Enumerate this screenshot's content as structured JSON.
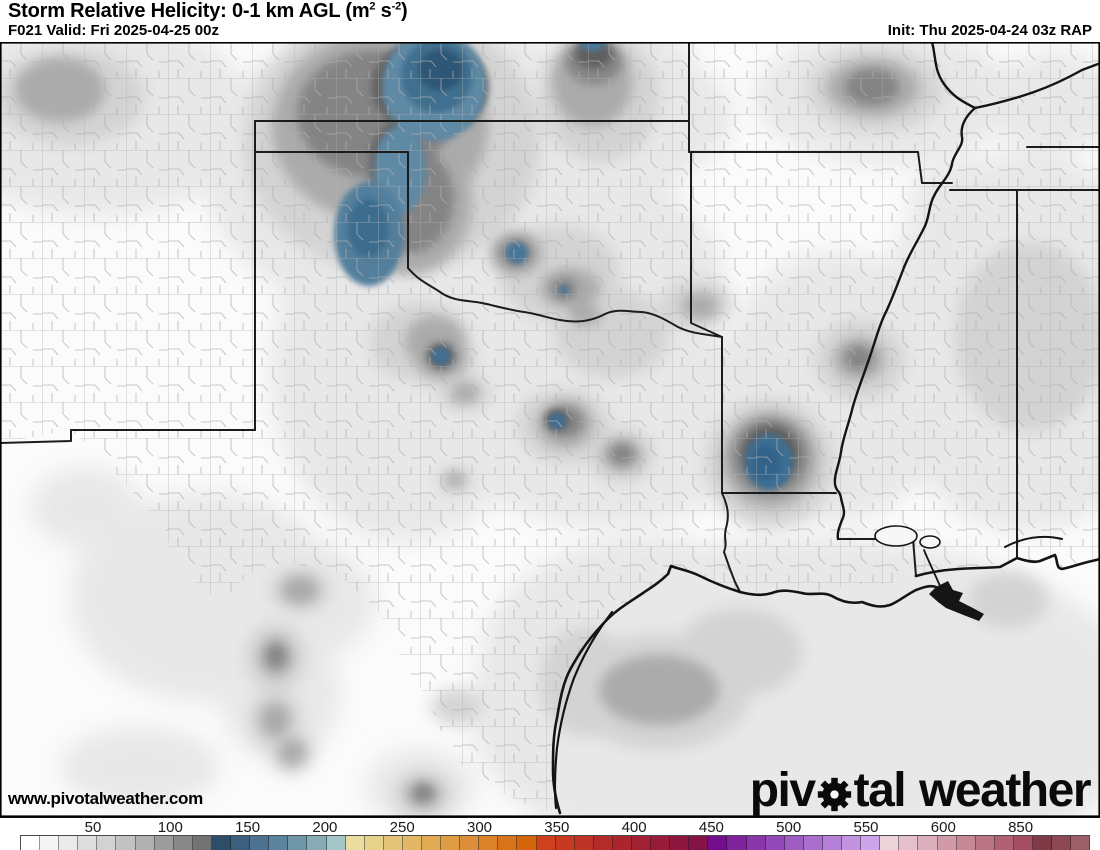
{
  "header": {
    "title_prefix": "Storm Relative Helicity: 0-1 km AGL (m",
    "title_sup1": "2",
    "title_mid": " s",
    "title_sup2": "-2",
    "title_suffix": ")",
    "valid": "F021 Valid: Fri 2025-04-25 00z",
    "init": "Init: Thu 2025-04-24 03z RAP"
  },
  "map": {
    "watermark": "www.pivotalweather.com",
    "logo_before_gear": "piv",
    "logo_after_gear": "tal",
    "logo_word2": "weather",
    "gear_icon": "gear",
    "shaded_region_colors": {
      "low_srh_gray_levels": [
        "#e8e8e8",
        "#d3d3d3",
        "#ababab",
        "#848484",
        "#5f5f5f"
      ],
      "elevated_srh_blue": [
        "#5e8aa6",
        "#41708f",
        "#2d5677"
      ],
      "state_border": "#1c1c1c",
      "county_line": "#b0b0b0",
      "water_outline": "#141414"
    }
  },
  "colorbar": {
    "ticks": [
      "50",
      "100",
      "150",
      "200",
      "250",
      "300",
      "350",
      "400",
      "450",
      "500",
      "550",
      "600",
      "850"
    ],
    "swatches": [
      "#ffffff",
      "#f4f4f4",
      "#eaeaea",
      "#dedede",
      "#d2d2d2",
      "#c2c2c2",
      "#b0b0b0",
      "#9c9c9c",
      "#888888",
      "#737373",
      "#2e4d68",
      "#3c5f7e",
      "#4b7290",
      "#5c849c",
      "#6f97a8",
      "#86abb5",
      "#a4c5ca",
      "#e9dda0",
      "#e7d28b",
      "#e4c577",
      "#e2b765",
      "#e0a952",
      "#de9c45",
      "#dc8f38",
      "#da8129",
      "#d87319",
      "#d5650b",
      "#cf411d",
      "#c63a20",
      "#bd3325",
      "#b42c29",
      "#ab252e",
      "#a22034",
      "#981b3a",
      "#8e1740",
      "#841346",
      "#720e8e",
      "#7d229c",
      "#8836aa",
      "#9449b8",
      "#9f5cc3",
      "#aa6ece",
      "#b581d8",
      "#c193e1",
      "#cca5ea",
      "#ecd3da",
      "#e3c0cb",
      "#daaebb",
      "#d09aa9",
      "#c68897",
      "#bb7485",
      "#b06173",
      "#a54e63",
      "#7e3a46",
      "#8e4854",
      "#9d5f6a"
    ]
  }
}
